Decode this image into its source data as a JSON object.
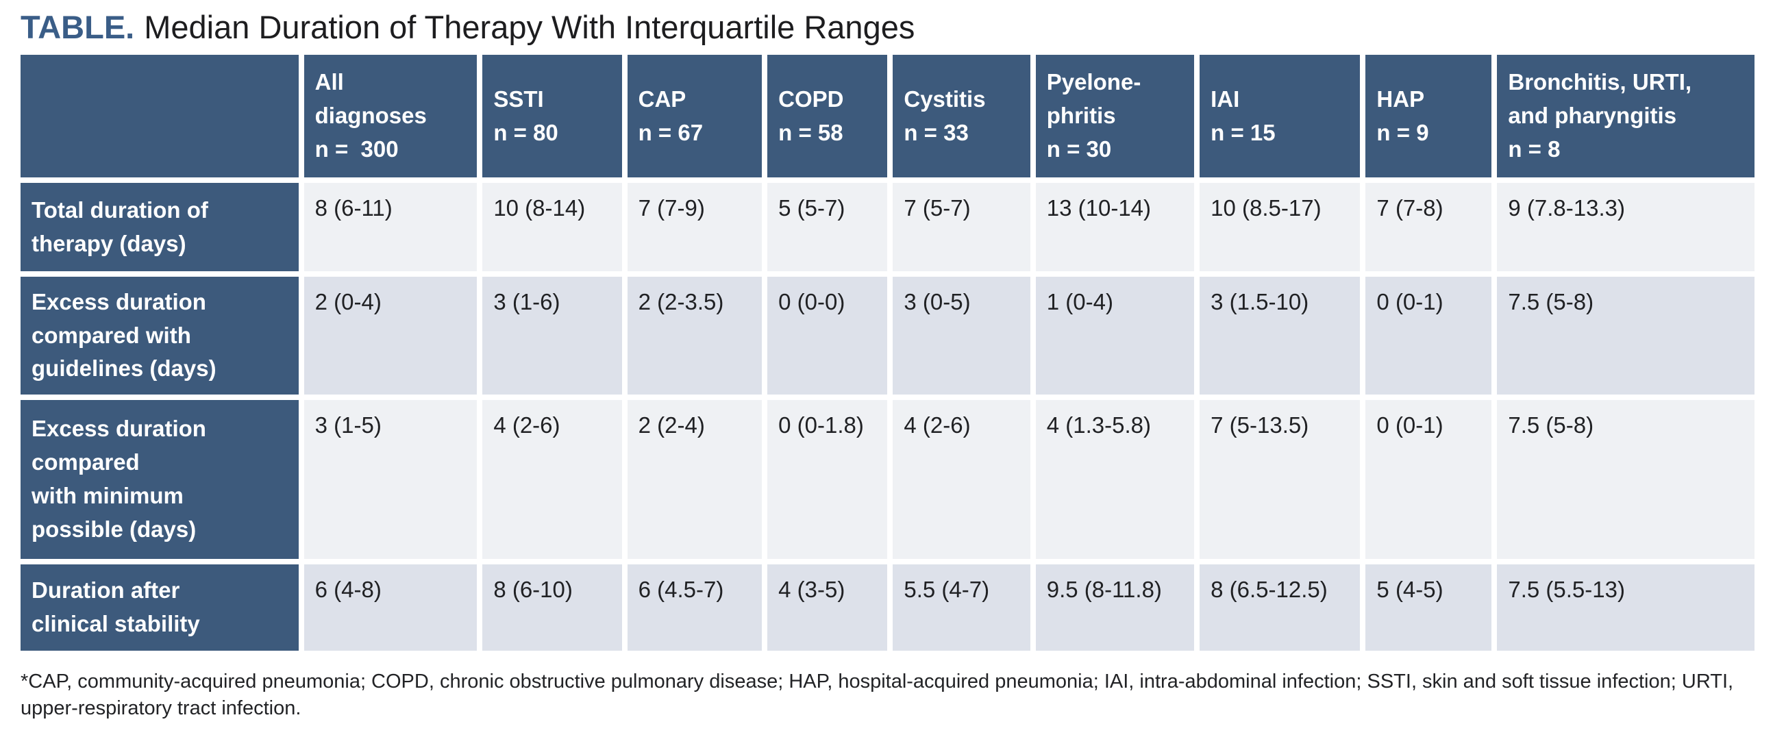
{
  "title": {
    "label": "TABLE.",
    "text": "Median Duration of Therapy With Interquartile Ranges"
  },
  "colors": {
    "header_blue": "#3d5a7c",
    "row_light": "#eff1f4",
    "row_dark": "#dde1ea",
    "title_accent": "#3a5d87"
  },
  "table": {
    "columns": [
      {
        "label": ""
      },
      {
        "label": "All\ndiagnoses\nn =  300"
      },
      {
        "label": "SSTI\nn = 80"
      },
      {
        "label": "CAP\nn = 67"
      },
      {
        "label": "COPD\nn = 58"
      },
      {
        "label": "Cystitis\nn = 33"
      },
      {
        "label": "Pyelone-\nphritis\nn = 30"
      },
      {
        "label": "IAI\nn = 15"
      },
      {
        "label": "HAP\nn = 9"
      },
      {
        "label": "Bronchitis, URTI,\nand pharyngitis\nn = 8"
      }
    ],
    "rows": [
      {
        "label": "Total duration of\ntherapy (days)",
        "values": [
          "8 (6-11)",
          "10 (8-14)",
          "7 (7-9)",
          "5 (5-7)",
          "7 (5-7)",
          "13 (10-14)",
          "10 (8.5-17)",
          "7 (7-8)",
          "9 (7.8-13.3)"
        ]
      },
      {
        "label": "Excess duration\ncompared with\nguidelines (days)",
        "values": [
          "2 (0-4)",
          "3 (1-6)",
          "2 (2-3.5)",
          "0 (0-0)",
          "3 (0-5)",
          "1 (0-4)",
          "3 (1.5-10)",
          "0 (0-1)",
          "7.5 (5-8)"
        ]
      },
      {
        "label": "Excess duration\ncompared\nwith minimum\npossible (days)",
        "values": [
          "3 (1-5)",
          "4 (2-6)",
          "2 (2-4)",
          "0 (0-1.8)",
          "4 (2-6)",
          "4 (1.3-5.8)",
          "7 (5-13.5)",
          "0 (0-1)",
          "7.5 (5-8)"
        ]
      },
      {
        "label": "Duration after\nclinical stability",
        "values": [
          "6 (4-8)",
          "8 (6-10)",
          "6 (4.5-7)",
          "4 (3-5)",
          "5.5 (4-7)",
          "9.5 (8-11.8)",
          "8 (6.5-12.5)",
          "5 (4-5)",
          "7.5 (5.5-13)"
        ]
      }
    ]
  },
  "footnote": "*CAP, community-acquired pneumonia; COPD, chronic obstructive pulmonary disease; HAP, hospital-acquired pneumonia; IAI, intra-abdominal infection; SSTI, skin and soft tissue infection; URTI, upper-respiratory tract infection."
}
